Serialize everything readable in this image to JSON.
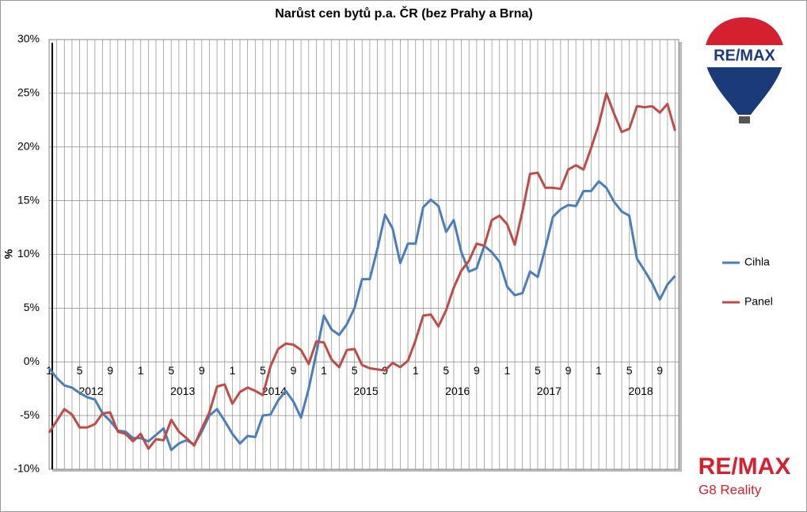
{
  "chart_data": {
    "type": "line",
    "title": "Narůst cen bytů p.a. ČR (bez Prahy a Brna)",
    "y_label": "%",
    "categories": [
      "1",
      null,
      null,
      null,
      "5",
      null,
      null,
      null,
      "9",
      null,
      null,
      null,
      "1",
      null,
      null,
      null,
      "5",
      null,
      null,
      null,
      "9",
      null,
      null,
      null,
      "1",
      null,
      null,
      null,
      "5",
      null,
      null,
      null,
      "9",
      null,
      null,
      null,
      "1",
      null,
      null,
      null,
      "5",
      null,
      null,
      null,
      "9",
      null,
      null,
      null,
      "1",
      null,
      null,
      null,
      "5",
      null,
      null,
      null,
      "9",
      null,
      null,
      null,
      "1",
      null,
      null,
      null,
      "5",
      null,
      null,
      null,
      "9",
      null,
      null,
      null,
      "1",
      null,
      null,
      null,
      "5",
      null,
      null,
      null,
      "9",
      null,
      null
    ],
    "year_labels": [
      "2012",
      "2013",
      "2014",
      "2015",
      "2016",
      "2017",
      "2018"
    ],
    "series": [
      {
        "name": "Cihla",
        "color": "#4a7ebb",
        "values": [
          -0.6,
          -1.5,
          -2.2,
          -2.4,
          -2.9,
          -3.3,
          -3.5,
          -4.8,
          -5.5,
          -6.4,
          -6.5,
          -7.1,
          -7.1,
          -7.4,
          -6.8,
          -6.2,
          -8.2,
          -7.6,
          -7.3,
          -7.7,
          -6.5,
          -5.0,
          -4.4,
          -5.5,
          -6.7,
          -7.6,
          -6.9,
          -7.0,
          -5.0,
          -4.9,
          -3.6,
          -2.7,
          -3.7,
          -5.2,
          -2.5,
          0.8,
          4.3,
          3.0,
          2.5,
          3.5,
          5.0,
          7.7,
          7.7,
          10.5,
          13.7,
          12.4,
          9.2,
          11.0,
          11.0,
          14.4,
          15.1,
          14.5,
          12.1,
          13.2,
          10.2,
          8.4,
          8.7,
          10.8,
          10.2,
          9.3,
          7.0,
          6.2,
          6.4,
          8.4,
          7.9,
          10.6,
          13.5,
          14.2,
          14.6,
          14.5,
          15.9,
          15.9,
          16.8,
          16.2,
          14.9,
          14.0,
          13.6,
          9.6,
          8.5,
          7.3,
          5.8,
          7.2,
          8.0
        ]
      },
      {
        "name": "Panel",
        "color": "#be4b48",
        "values": [
          -6.6,
          -5.5,
          -4.4,
          -4.9,
          -6.1,
          -6.1,
          -5.8,
          -4.8,
          -4.7,
          -6.5,
          -6.7,
          -7.4,
          -6.7,
          -8.1,
          -7.2,
          -7.3,
          -5.4,
          -6.5,
          -7.1,
          -7.8,
          -6.2,
          -4.7,
          -2.3,
          -2.1,
          -3.9,
          -2.8,
          -2.4,
          -2.7,
          -3.1,
          -0.4,
          1.2,
          1.7,
          1.6,
          1.1,
          -0.2,
          1.9,
          1.8,
          0.2,
          -0.5,
          1.1,
          1.2,
          -0.3,
          -0.6,
          -0.7,
          -0.8,
          -0.1,
          -0.5,
          0.1,
          2.0,
          4.3,
          4.4,
          3.3,
          4.8,
          6.9,
          8.5,
          9.4,
          11.0,
          10.8,
          13.2,
          13.6,
          12.8,
          10.9,
          14.0,
          17.5,
          17.6,
          16.2,
          16.2,
          16.1,
          17.9,
          18.3,
          17.9,
          19.9,
          22.1,
          25.0,
          23.1,
          21.4,
          21.7,
          23.8,
          23.7,
          23.8,
          23.2,
          24.0,
          21.5
        ]
      }
    ],
    "ylim": [
      -10,
      30
    ],
    "yticks": [
      {
        "value": -10,
        "label": "-10%"
      },
      {
        "value": -5,
        "label": "-5%"
      },
      {
        "value": 0,
        "label": "0%"
      },
      {
        "value": 5,
        "label": "5%"
      },
      {
        "value": 10,
        "label": "10%"
      },
      {
        "value": 15,
        "label": "15%"
      },
      {
        "value": 20,
        "label": "20%"
      },
      {
        "value": 25,
        "label": "25%"
      },
      {
        "value": 30,
        "label": "30%"
      }
    ],
    "grid": true,
    "legend": "right"
  },
  "branding": {
    "balloon_text": "RE/MAX",
    "logo": "RE/MAX",
    "office": "G8 Reality"
  }
}
